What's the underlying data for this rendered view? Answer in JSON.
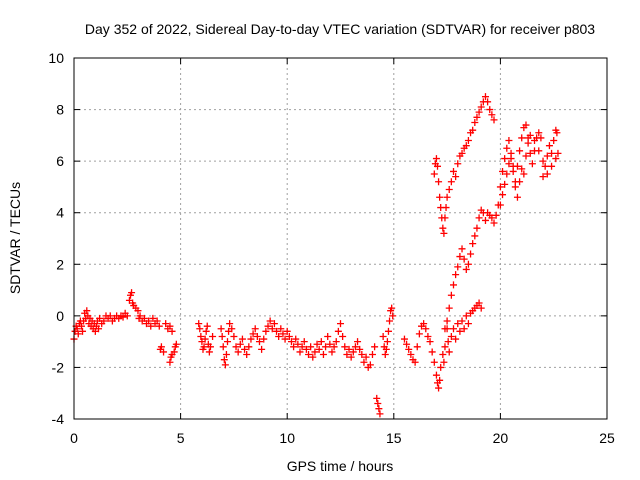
{
  "chart_data": {
    "type": "scatter",
    "title": "Day 352 of 2022, Sidereal Day-to-day VTEC variation (SDTVAR) for receiver p803",
    "xlabel": "GPS time / hours",
    "ylabel": "SDTVAR / TECUs",
    "xlim": [
      0,
      25
    ],
    "ylim": [
      -4,
      10
    ],
    "xticks": [
      0,
      5,
      10,
      15,
      20,
      25
    ],
    "yticks": [
      -4,
      -2,
      0,
      2,
      4,
      6,
      8,
      10
    ],
    "grid": true,
    "marker": "+",
    "marker_color": "#ff0000",
    "series": [
      {
        "name": "SDTVAR",
        "points": [
          [
            0.0,
            -0.9
          ],
          [
            0.05,
            -0.6
          ],
          [
            0.1,
            -0.4
          ],
          [
            0.15,
            -0.5
          ],
          [
            0.2,
            -0.7
          ],
          [
            0.25,
            -0.3
          ],
          [
            0.3,
            -0.2
          ],
          [
            0.35,
            -0.4
          ],
          [
            0.4,
            -0.6
          ],
          [
            0.45,
            -0.2
          ],
          [
            0.5,
            0.1
          ],
          [
            0.55,
            -0.1
          ],
          [
            0.6,
            0.2
          ],
          [
            0.65,
            0.0
          ],
          [
            0.7,
            -0.3
          ],
          [
            0.75,
            -0.1
          ],
          [
            0.8,
            -0.4
          ],
          [
            0.85,
            -0.2
          ],
          [
            0.9,
            -0.5
          ],
          [
            0.95,
            -0.3
          ],
          [
            1.0,
            -0.6
          ],
          [
            1.05,
            -0.4
          ],
          [
            1.1,
            -0.2
          ],
          [
            1.15,
            -0.5
          ],
          [
            1.2,
            -0.1
          ],
          [
            1.3,
            -0.3
          ],
          [
            1.4,
            -0.2
          ],
          [
            1.5,
            0.0
          ],
          [
            1.6,
            -0.1
          ],
          [
            1.7,
            0.0
          ],
          [
            1.8,
            -0.2
          ],
          [
            1.9,
            -0.1
          ],
          [
            2.0,
            0.0
          ],
          [
            2.1,
            -0.1
          ],
          [
            2.2,
            0.0
          ],
          [
            2.3,
            -0.05
          ],
          [
            2.4,
            0.1
          ],
          [
            2.5,
            0.0
          ],
          [
            2.6,
            0.6
          ],
          [
            2.65,
            0.8
          ],
          [
            2.7,
            0.9
          ],
          [
            2.75,
            0.5
          ],
          [
            2.8,
            0.4
          ],
          [
            2.9,
            0.3
          ],
          [
            3.0,
            0.2
          ],
          [
            3.05,
            -0.1
          ],
          [
            3.1,
            0.0
          ],
          [
            3.2,
            -0.2
          ],
          [
            3.3,
            -0.1
          ],
          [
            3.4,
            -0.3
          ],
          [
            3.5,
            -0.2
          ],
          [
            3.6,
            -0.4
          ],
          [
            3.7,
            -0.1
          ],
          [
            3.8,
            -0.3
          ],
          [
            3.9,
            -0.2
          ],
          [
            4.0,
            -0.4
          ],
          [
            4.05,
            -1.3
          ],
          [
            4.1,
            -1.2
          ],
          [
            4.2,
            -1.4
          ],
          [
            4.3,
            -0.3
          ],
          [
            4.4,
            -0.5
          ],
          [
            4.5,
            -0.4
          ],
          [
            4.6,
            -0.6
          ],
          [
            4.5,
            -1.8
          ],
          [
            4.55,
            -1.6
          ],
          [
            4.6,
            -1.5
          ],
          [
            4.7,
            -1.4
          ],
          [
            4.75,
            -1.2
          ],
          [
            4.8,
            -1.1
          ],
          [
            5.85,
            -0.3
          ],
          [
            5.9,
            -0.5
          ],
          [
            5.95,
            -0.8
          ],
          [
            6.0,
            -1.0
          ],
          [
            6.05,
            -1.3
          ],
          [
            6.1,
            -1.2
          ],
          [
            6.15,
            -0.9
          ],
          [
            6.2,
            -0.6
          ],
          [
            6.25,
            -0.4
          ],
          [
            6.3,
            -1.1
          ],
          [
            6.35,
            -1.4
          ],
          [
            6.4,
            -1.2
          ],
          [
            6.5,
            -0.8
          ],
          [
            6.9,
            -0.5
          ],
          [
            6.95,
            -0.8
          ],
          [
            7.0,
            -1.2
          ],
          [
            7.05,
            -1.7
          ],
          [
            7.1,
            -1.9
          ],
          [
            7.15,
            -1.5
          ],
          [
            7.2,
            -1.0
          ],
          [
            7.25,
            -0.6
          ],
          [
            7.3,
            -0.3
          ],
          [
            7.4,
            -0.5
          ],
          [
            7.5,
            -0.8
          ],
          [
            7.6,
            -1.2
          ],
          [
            7.7,
            -1.4
          ],
          [
            7.8,
            -1.1
          ],
          [
            7.9,
            -0.9
          ],
          [
            8.0,
            -1.3
          ],
          [
            8.1,
            -1.5
          ],
          [
            8.2,
            -1.2
          ],
          [
            8.3,
            -0.9
          ],
          [
            8.4,
            -0.7
          ],
          [
            8.5,
            -0.5
          ],
          [
            8.6,
            -0.8
          ],
          [
            8.7,
            -1.0
          ],
          [
            8.8,
            -1.3
          ],
          [
            8.9,
            -0.9
          ],
          [
            9.0,
            -0.6
          ],
          [
            9.1,
            -0.4
          ],
          [
            9.2,
            -0.2
          ],
          [
            9.3,
            -0.5
          ],
          [
            9.4,
            -0.3
          ],
          [
            9.5,
            -0.6
          ],
          [
            9.6,
            -0.8
          ],
          [
            9.7,
            -0.5
          ],
          [
            9.8,
            -0.7
          ],
          [
            9.9,
            -0.9
          ],
          [
            10.0,
            -0.6
          ],
          [
            10.1,
            -0.8
          ],
          [
            10.2,
            -1.0
          ],
          [
            10.3,
            -1.2
          ],
          [
            10.4,
            -0.9
          ],
          [
            10.5,
            -1.1
          ],
          [
            10.6,
            -1.4
          ],
          [
            10.7,
            -1.2
          ],
          [
            10.8,
            -1.0
          ],
          [
            10.9,
            -1.3
          ],
          [
            11.0,
            -1.5
          ],
          [
            11.1,
            -1.2
          ],
          [
            11.2,
            -1.6
          ],
          [
            11.3,
            -1.4
          ],
          [
            11.4,
            -1.1
          ],
          [
            11.5,
            -1.3
          ],
          [
            11.6,
            -1.0
          ],
          [
            11.7,
            -1.5
          ],
          [
            11.8,
            -1.2
          ],
          [
            11.9,
            -0.8
          ],
          [
            12.0,
            -1.1
          ],
          [
            12.1,
            -1.4
          ],
          [
            12.2,
            -1.2
          ],
          [
            12.3,
            -1.0
          ],
          [
            12.4,
            -0.6
          ],
          [
            12.5,
            -0.3
          ],
          [
            12.6,
            -0.8
          ],
          [
            12.7,
            -1.2
          ],
          [
            12.8,
            -1.5
          ],
          [
            12.9,
            -1.3
          ],
          [
            13.0,
            -1.6
          ],
          [
            13.1,
            -1.4
          ],
          [
            13.2,
            -1.2
          ],
          [
            13.3,
            -1.0
          ],
          [
            13.4,
            -1.3
          ],
          [
            13.5,
            -1.5
          ],
          [
            13.6,
            -1.8
          ],
          [
            13.7,
            -1.6
          ],
          [
            13.8,
            -2.0
          ],
          [
            13.9,
            -1.9
          ],
          [
            14.0,
            -1.5
          ],
          [
            14.1,
            -1.2
          ],
          [
            14.2,
            -3.2
          ],
          [
            14.25,
            -3.4
          ],
          [
            14.3,
            -3.6
          ],
          [
            14.35,
            -3.8
          ],
          [
            14.5,
            -0.8
          ],
          [
            14.55,
            -1.2
          ],
          [
            14.6,
            -1.5
          ],
          [
            14.65,
            -1.3
          ],
          [
            14.7,
            -1.0
          ],
          [
            14.75,
            -0.6
          ],
          [
            14.8,
            -0.2
          ],
          [
            14.85,
            0.2
          ],
          [
            14.9,
            0.3
          ],
          [
            14.95,
            0.0
          ],
          [
            15.5,
            -0.9
          ],
          [
            15.6,
            -1.1
          ],
          [
            15.7,
            -1.3
          ],
          [
            15.8,
            -1.5
          ],
          [
            15.9,
            -1.7
          ],
          [
            16.0,
            -1.8
          ],
          [
            16.1,
            -1.2
          ],
          [
            16.2,
            -0.7
          ],
          [
            16.3,
            -0.4
          ],
          [
            16.4,
            -0.3
          ],
          [
            16.5,
            -0.5
          ],
          [
            16.6,
            -0.8
          ],
          [
            16.7,
            -1.0
          ],
          [
            16.8,
            -1.4
          ],
          [
            16.9,
            -1.8
          ],
          [
            17.0,
            -2.3
          ],
          [
            17.05,
            -2.6
          ],
          [
            17.1,
            -2.8
          ],
          [
            17.15,
            -2.5
          ],
          [
            17.2,
            -2.0
          ],
          [
            17.3,
            -1.5
          ],
          [
            17.35,
            -1.8
          ],
          [
            17.4,
            -1.2
          ],
          [
            17.5,
            -0.5
          ],
          [
            17.55,
            -1.0
          ],
          [
            17.6,
            -1.4
          ],
          [
            17.7,
            -0.8
          ],
          [
            17.8,
            -0.5
          ],
          [
            17.9,
            -0.9
          ],
          [
            18.0,
            -0.3
          ],
          [
            18.1,
            -0.6
          ],
          [
            18.2,
            -0.2
          ],
          [
            18.3,
            -0.5
          ],
          [
            18.4,
            0.0
          ],
          [
            18.5,
            -0.3
          ],
          [
            18.6,
            0.1
          ],
          [
            18.7,
            0.2
          ],
          [
            18.8,
            0.3
          ],
          [
            18.9,
            0.4
          ],
          [
            19.0,
            0.5
          ],
          [
            19.1,
            0.3
          ],
          [
            16.9,
            5.5
          ],
          [
            16.95,
            5.9
          ],
          [
            17.0,
            6.1
          ],
          [
            17.05,
            5.8
          ],
          [
            17.1,
            5.2
          ],
          [
            17.15,
            4.6
          ],
          [
            17.2,
            4.2
          ],
          [
            17.25,
            3.8
          ],
          [
            17.3,
            3.4
          ],
          [
            17.35,
            3.2
          ],
          [
            17.4,
            3.8
          ],
          [
            17.45,
            4.2
          ],
          [
            17.5,
            4.6
          ],
          [
            17.6,
            4.9
          ],
          [
            17.7,
            5.2
          ],
          [
            17.8,
            5.6
          ],
          [
            17.9,
            5.4
          ],
          [
            18.0,
            5.9
          ],
          [
            18.1,
            6.2
          ],
          [
            18.2,
            6.3
          ],
          [
            18.3,
            6.5
          ],
          [
            18.4,
            6.6
          ],
          [
            18.5,
            6.8
          ],
          [
            18.6,
            7.1
          ],
          [
            18.7,
            7.2
          ],
          [
            18.8,
            7.5
          ],
          [
            18.9,
            7.7
          ],
          [
            19.0,
            7.9
          ],
          [
            19.1,
            8.1
          ],
          [
            19.2,
            8.3
          ],
          [
            19.3,
            8.5
          ],
          [
            19.4,
            8.3
          ],
          [
            19.5,
            8.0
          ],
          [
            19.6,
            7.8
          ],
          [
            19.7,
            7.6
          ],
          [
            17.4,
            -0.5
          ],
          [
            17.5,
            -0.2
          ],
          [
            17.6,
            0.3
          ],
          [
            17.7,
            0.8
          ],
          [
            17.8,
            1.2
          ],
          [
            17.9,
            1.6
          ],
          [
            18.0,
            1.9
          ],
          [
            18.1,
            2.3
          ],
          [
            18.2,
            2.6
          ],
          [
            18.3,
            2.2
          ],
          [
            18.4,
            1.8
          ],
          [
            18.5,
            2.0
          ],
          [
            18.6,
            2.4
          ],
          [
            18.7,
            2.8
          ],
          [
            18.8,
            3.1
          ],
          [
            18.9,
            3.4
          ],
          [
            19.0,
            3.8
          ],
          [
            19.1,
            4.1
          ],
          [
            19.2,
            4.0
          ],
          [
            19.3,
            3.7
          ],
          [
            19.4,
            4.0
          ],
          [
            19.5,
            3.9
          ],
          [
            19.6,
            3.8
          ],
          [
            19.7,
            3.6
          ],
          [
            19.8,
            3.9
          ],
          [
            19.9,
            4.3
          ],
          [
            20.0,
            5.0
          ],
          [
            20.1,
            5.6
          ],
          [
            20.2,
            6.1
          ],
          [
            20.3,
            6.5
          ],
          [
            20.4,
            6.8
          ],
          [
            20.5,
            6.3
          ],
          [
            20.6,
            5.8
          ],
          [
            20.7,
            5.2
          ],
          [
            20.8,
            5.8
          ],
          [
            20.9,
            6.4
          ],
          [
            21.0,
            6.9
          ],
          [
            21.1,
            7.3
          ],
          [
            21.2,
            7.4
          ],
          [
            21.3,
            6.9
          ],
          [
            21.4,
            6.3
          ],
          [
            21.5,
            5.9
          ],
          [
            21.6,
            6.4
          ],
          [
            21.7,
            6.9
          ],
          [
            21.8,
            7.1
          ],
          [
            21.9,
            6.9
          ],
          [
            22.0,
            5.4
          ],
          [
            22.1,
            5.8
          ],
          [
            22.2,
            6.2
          ],
          [
            22.3,
            6.6
          ],
          [
            22.4,
            6.3
          ],
          [
            22.5,
            6.8
          ],
          [
            22.6,
            7.2
          ],
          [
            22.65,
            7.1
          ],
          [
            20.0,
            4.3
          ],
          [
            20.1,
            4.7
          ],
          [
            20.2,
            5.1
          ],
          [
            20.3,
            5.5
          ],
          [
            20.4,
            5.9
          ],
          [
            20.5,
            6.1
          ],
          [
            20.6,
            5.6
          ],
          [
            20.7,
            5.0
          ],
          [
            20.8,
            4.6
          ],
          [
            20.9,
            5.2
          ],
          [
            21.0,
            5.7
          ],
          [
            21.1,
            5.5
          ],
          [
            21.2,
            6.2
          ],
          [
            21.3,
            6.7
          ],
          [
            21.4,
            7.0
          ],
          [
            21.6,
            6.8
          ],
          [
            21.8,
            6.4
          ],
          [
            22.0,
            6.0
          ],
          [
            22.2,
            5.5
          ],
          [
            22.4,
            5.8
          ],
          [
            22.6,
            6.1
          ],
          [
            22.7,
            6.3
          ]
        ]
      }
    ]
  }
}
